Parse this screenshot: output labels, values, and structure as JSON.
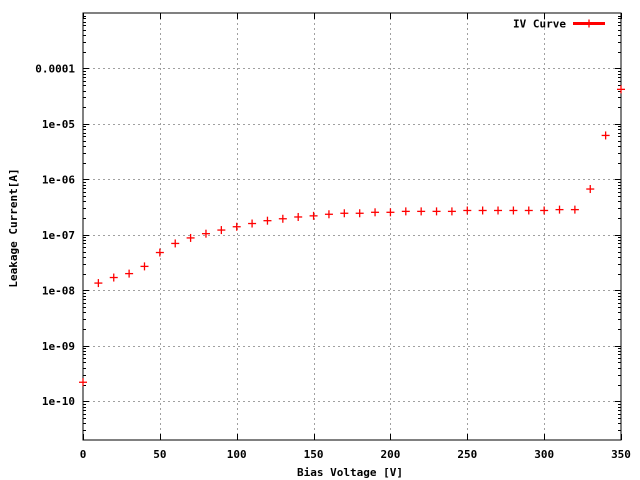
{
  "chart_data": {
    "type": "scatter",
    "xlabel": "Bias Voltage [V]",
    "ylabel": "Leakage Current[A]",
    "xlim": [
      0,
      350
    ],
    "ylim": [
      2e-11,
      0.001
    ],
    "y_scale": "log",
    "grid": true,
    "legend_position": "top-right",
    "x_ticks": [
      0,
      50,
      100,
      150,
      200,
      250,
      300,
      350
    ],
    "x_tick_labels": [
      "0",
      "50",
      "100",
      "150",
      "200",
      "250",
      "300",
      "350"
    ],
    "y_ticks": [
      1e-10,
      1e-09,
      1e-08,
      1e-07,
      1e-06,
      1e-05,
      0.0001
    ],
    "y_tick_labels": [
      "1e-10",
      "1e-09",
      "1e-08",
      "1e-07",
      "1e-06",
      "1e-05",
      "0.0001"
    ],
    "series": [
      {
        "name": "IV Curve",
        "color": "#ff0000",
        "x": [
          0,
          10,
          20,
          30,
          40,
          50,
          60,
          70,
          80,
          90,
          100,
          110,
          120,
          130,
          140,
          150,
          160,
          170,
          180,
          190,
          200,
          210,
          220,
          230,
          240,
          250,
          260,
          270,
          280,
          290,
          300,
          310,
          320,
          330,
          340,
          350
        ],
        "y": [
          2.2e-10,
          1.35e-08,
          1.7e-08,
          2e-08,
          2.7e-08,
          4.8e-08,
          7e-08,
          8.8e-08,
          1.05e-07,
          1.22e-07,
          1.4e-07,
          1.6e-07,
          1.8e-07,
          1.95e-07,
          2.1e-07,
          2.2e-07,
          2.35e-07,
          2.45e-07,
          2.45e-07,
          2.55e-07,
          2.55e-07,
          2.65e-07,
          2.65e-07,
          2.65e-07,
          2.65e-07,
          2.75e-07,
          2.75e-07,
          2.75e-07,
          2.75e-07,
          2.75e-07,
          2.75e-07,
          2.85e-07,
          2.85e-07,
          6.7e-07,
          6.2e-06,
          4.2e-05
        ]
      }
    ]
  }
}
